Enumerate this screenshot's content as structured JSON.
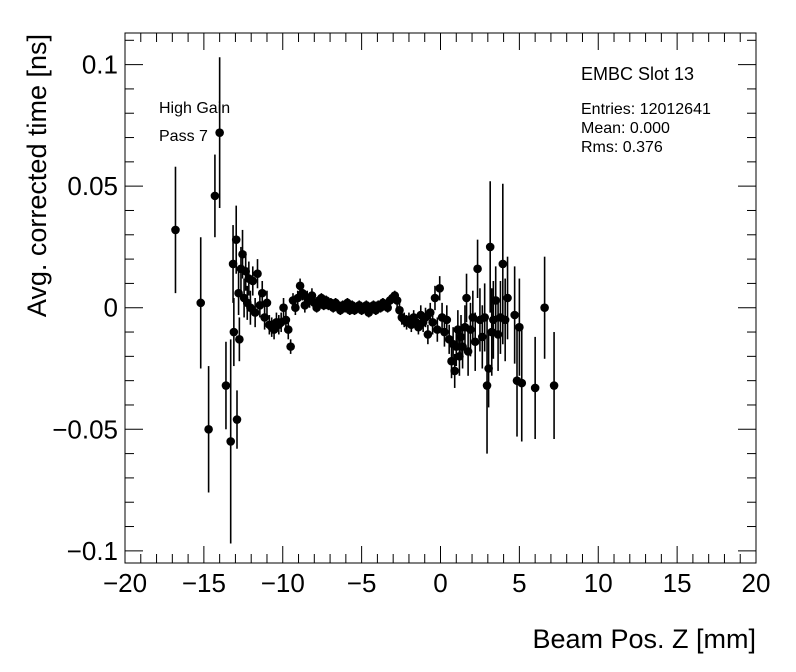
{
  "chart_data": {
    "type": "scatter",
    "xlabel": "Beam Pos. Z [mm]",
    "ylabel": "Avg. corrected time [ns]",
    "xlim": [
      -20,
      20
    ],
    "ylim": [
      -0.105,
      0.113
    ],
    "xticks": [
      -20,
      -15,
      -10,
      -5,
      0,
      5,
      10,
      15,
      20
    ],
    "xtick_labels": [
      "−20",
      "−15",
      "−10",
      "−5",
      "0",
      "5",
      "10",
      "15",
      "20"
    ],
    "yticks": [
      0.1,
      0.05,
      0,
      -0.05,
      -0.1
    ],
    "ytick_labels": [
      "0.1",
      "0.05",
      "0",
      "−0.05",
      "−0.1"
    ],
    "grid": false,
    "marker_color": "#000000",
    "points": [
      {
        "x": -16.8,
        "y": 0.032,
        "err": 0.026
      },
      {
        "x": -15.2,
        "y": 0.002,
        "err": 0.027
      },
      {
        "x": -14.7,
        "y": -0.05,
        "err": 0.026
      },
      {
        "x": -14.3,
        "y": 0.046,
        "err": 0.017
      },
      {
        "x": -14.0,
        "y": 0.072,
        "err": 0.031
      },
      {
        "x": -13.6,
        "y": -0.032,
        "err": 0.018
      },
      {
        "x": -13.3,
        "y": -0.055,
        "err": 0.042
      },
      {
        "x": -13.15,
        "y": 0.018,
        "err": 0.016
      },
      {
        "x": -13.1,
        "y": -0.01,
        "err": 0.014
      },
      {
        "x": -12.95,
        "y": 0.028,
        "err": 0.014
      },
      {
        "x": -12.9,
        "y": -0.046,
        "err": 0.012
      },
      {
        "x": -12.8,
        "y": 0.006,
        "err": 0.009
      },
      {
        "x": -12.75,
        "y": -0.013,
        "err": 0.009
      },
      {
        "x": -12.65,
        "y": 0.016,
        "err": 0.009
      },
      {
        "x": -12.55,
        "y": 0.022,
        "err": 0.01
      },
      {
        "x": -12.45,
        "y": 0.004,
        "err": 0.008
      },
      {
        "x": -12.35,
        "y": 0.015,
        "err": 0.008
      },
      {
        "x": -12.25,
        "y": 0.002,
        "err": 0.007
      },
      {
        "x": -12.15,
        "y": 0.012,
        "err": 0.007
      },
      {
        "x": -12.05,
        "y": 0.0,
        "err": 0.007
      },
      {
        "x": -11.9,
        "y": 0.011,
        "err": 0.006
      },
      {
        "x": -11.75,
        "y": -0.002,
        "err": 0.006
      },
      {
        "x": -11.6,
        "y": 0.014,
        "err": 0.006
      },
      {
        "x": -11.45,
        "y": 0.001,
        "err": 0.005
      },
      {
        "x": -11.3,
        "y": 0.006,
        "err": 0.005
      },
      {
        "x": -11.15,
        "y": -0.004,
        "err": 0.005
      },
      {
        "x": -11.0,
        "y": 0.002,
        "err": 0.005
      },
      {
        "x": -10.85,
        "y": -0.007,
        "err": 0.004
      },
      {
        "x": -10.7,
        "y": -0.008,
        "err": 0.004
      },
      {
        "x": -10.55,
        "y": -0.009,
        "err": 0.004
      },
      {
        "x": -10.4,
        "y": -0.006,
        "err": 0.004
      },
      {
        "x": -10.25,
        "y": -0.007,
        "err": 0.004
      },
      {
        "x": -10.1,
        "y": -0.006,
        "err": 0.004
      },
      {
        "x": -9.95,
        "y": 0.0,
        "err": 0.004
      },
      {
        "x": -9.8,
        "y": -0.005,
        "err": 0.004
      },
      {
        "x": -9.65,
        "y": -0.009,
        "err": 0.004
      },
      {
        "x": -9.5,
        "y": -0.016,
        "err": 0.003
      },
      {
        "x": -9.35,
        "y": 0.003,
        "err": 0.003
      },
      {
        "x": -9.2,
        "y": 0.0,
        "err": 0.003
      },
      {
        "x": -9.05,
        "y": 0.004,
        "err": 0.003
      },
      {
        "x": -8.9,
        "y": 0.009,
        "err": 0.003
      },
      {
        "x": -8.75,
        "y": 0.006,
        "err": 0.003
      },
      {
        "x": -8.6,
        "y": 0.001,
        "err": 0.003
      },
      {
        "x": -8.45,
        "y": 0.004,
        "err": 0.003
      },
      {
        "x": -8.3,
        "y": 0.003,
        "err": 0.003
      },
      {
        "x": -8.15,
        "y": 0.005,
        "err": 0.003
      },
      {
        "x": -8.0,
        "y": 0.002,
        "err": 0.003
      },
      {
        "x": -7.85,
        "y": 0.0,
        "err": 0.002
      },
      {
        "x": -7.7,
        "y": 0.003,
        "err": 0.002
      },
      {
        "x": -7.55,
        "y": 0.004,
        "err": 0.002
      },
      {
        "x": -7.4,
        "y": 0.001,
        "err": 0.002
      },
      {
        "x": -7.25,
        "y": 0.003,
        "err": 0.002
      },
      {
        "x": -7.1,
        "y": 0.001,
        "err": 0.002
      },
      {
        "x": -6.95,
        "y": 0.002,
        "err": 0.002
      },
      {
        "x": -6.8,
        "y": 0.0,
        "err": 0.002
      },
      {
        "x": -6.65,
        "y": 0.002,
        "err": 0.002
      },
      {
        "x": -6.5,
        "y": 0.001,
        "err": 0.002
      },
      {
        "x": -6.35,
        "y": -0.001,
        "err": 0.002
      },
      {
        "x": -6.2,
        "y": 0.001,
        "err": 0.002
      },
      {
        "x": -6.05,
        "y": 0.0,
        "err": 0.002
      },
      {
        "x": -5.9,
        "y": 0.002,
        "err": 0.002
      },
      {
        "x": -5.75,
        "y": -0.001,
        "err": 0.002
      },
      {
        "x": -5.6,
        "y": 0.001,
        "err": 0.002
      },
      {
        "x": -5.45,
        "y": -0.001,
        "err": 0.002
      },
      {
        "x": -5.3,
        "y": 0.0,
        "err": 0.002
      },
      {
        "x": -5.15,
        "y": 0.001,
        "err": 0.002
      },
      {
        "x": -5.0,
        "y": -0.001,
        "err": 0.002
      },
      {
        "x": -4.85,
        "y": 0.0,
        "err": 0.002
      },
      {
        "x": -4.7,
        "y": 0.001,
        "err": 0.002
      },
      {
        "x": -4.55,
        "y": -0.002,
        "err": 0.002
      },
      {
        "x": -4.4,
        "y": 0.0,
        "err": 0.002
      },
      {
        "x": -4.25,
        "y": 0.001,
        "err": 0.002
      },
      {
        "x": -4.1,
        "y": -0.001,
        "err": 0.002
      },
      {
        "x": -3.95,
        "y": 0.001,
        "err": 0.002
      },
      {
        "x": -3.8,
        "y": 0.0,
        "err": 0.002
      },
      {
        "x": -3.65,
        "y": 0.002,
        "err": 0.002
      },
      {
        "x": -3.5,
        "y": 0.001,
        "err": 0.002
      },
      {
        "x": -3.35,
        "y": 0.0,
        "err": 0.002
      },
      {
        "x": -3.2,
        "y": 0.003,
        "err": 0.002
      },
      {
        "x": -3.05,
        "y": 0.004,
        "err": 0.002
      },
      {
        "x": -2.9,
        "y": 0.005,
        "err": 0.002
      },
      {
        "x": -2.75,
        "y": 0.003,
        "err": 0.003
      },
      {
        "x": -2.6,
        "y": -0.001,
        "err": 0.003
      },
      {
        "x": -2.45,
        "y": -0.004,
        "err": 0.003
      },
      {
        "x": -2.3,
        "y": -0.005,
        "err": 0.003
      },
      {
        "x": -2.15,
        "y": -0.006,
        "err": 0.003
      },
      {
        "x": -2.0,
        "y": -0.005,
        "err": 0.003
      },
      {
        "x": -1.85,
        "y": -0.007,
        "err": 0.003
      },
      {
        "x": -1.7,
        "y": -0.004,
        "err": 0.003
      },
      {
        "x": -1.55,
        "y": -0.006,
        "err": 0.003
      },
      {
        "x": -1.4,
        "y": -0.008,
        "err": 0.003
      },
      {
        "x": -1.25,
        "y": -0.003,
        "err": 0.004
      },
      {
        "x": -1.1,
        "y": -0.006,
        "err": 0.004
      },
      {
        "x": -0.95,
        "y": -0.004,
        "err": 0.004
      },
      {
        "x": -0.8,
        "y": -0.011,
        "err": 0.004
      },
      {
        "x": -0.65,
        "y": -0.002,
        "err": 0.004
      },
      {
        "x": -0.5,
        "y": -0.006,
        "err": 0.005
      },
      {
        "x": -0.35,
        "y": 0.004,
        "err": 0.005
      },
      {
        "x": -0.2,
        "y": -0.009,
        "err": 0.005
      },
      {
        "x": -0.05,
        "y": 0.008,
        "err": 0.005
      },
      {
        "x": 0.1,
        "y": -0.004,
        "err": 0.006
      },
      {
        "x": 0.25,
        "y": -0.01,
        "err": 0.006
      },
      {
        "x": 0.4,
        "y": -0.005,
        "err": 0.006
      },
      {
        "x": 0.55,
        "y": -0.013,
        "err": 0.006
      },
      {
        "x": 0.7,
        "y": -0.022,
        "err": 0.007
      },
      {
        "x": 0.8,
        "y": -0.015,
        "err": 0.007
      },
      {
        "x": 0.9,
        "y": -0.026,
        "err": 0.007
      },
      {
        "x": 1.0,
        "y": -0.016,
        "err": 0.008
      },
      {
        "x": 1.1,
        "y": -0.009,
        "err": 0.008
      },
      {
        "x": 1.2,
        "y": -0.02,
        "err": 0.008
      },
      {
        "x": 1.3,
        "y": -0.012,
        "err": 0.009
      },
      {
        "x": 1.4,
        "y": -0.016,
        "err": 0.009
      },
      {
        "x": 1.55,
        "y": -0.008,
        "err": 0.009
      },
      {
        "x": 1.65,
        "y": 0.004,
        "err": 0.01
      },
      {
        "x": 1.75,
        "y": -0.018,
        "err": 0.01
      },
      {
        "x": 1.9,
        "y": -0.009,
        "err": 0.011
      },
      {
        "x": 2.05,
        "y": -0.004,
        "err": 0.011
      },
      {
        "x": 2.2,
        "y": -0.014,
        "err": 0.012
      },
      {
        "x": 2.35,
        "y": 0.016,
        "err": 0.012
      },
      {
        "x": 2.5,
        "y": -0.005,
        "err": 0.013
      },
      {
        "x": 2.65,
        "y": -0.012,
        "err": 0.013
      },
      {
        "x": 2.8,
        "y": -0.004,
        "err": 0.014
      },
      {
        "x": 2.95,
        "y": -0.032,
        "err": 0.028
      },
      {
        "x": 3.05,
        "y": -0.025,
        "err": 0.016
      },
      {
        "x": 3.15,
        "y": 0.025,
        "err": 0.027
      },
      {
        "x": 3.25,
        "y": -0.01,
        "err": 0.018
      },
      {
        "x": 3.35,
        "y": -0.005,
        "err": 0.016
      },
      {
        "x": 3.5,
        "y": 0.003,
        "err": 0.014
      },
      {
        "x": 3.65,
        "y": -0.011,
        "err": 0.015
      },
      {
        "x": 3.8,
        "y": -0.004,
        "err": 0.015
      },
      {
        "x": 3.95,
        "y": 0.018,
        "err": 0.033
      },
      {
        "x": 4.1,
        "y": -0.005,
        "err": 0.017
      },
      {
        "x": 4.25,
        "y": 0.004,
        "err": 0.017
      },
      {
        "x": 4.7,
        "y": -0.003,
        "err": 0.02
      },
      {
        "x": 4.85,
        "y": -0.03,
        "err": 0.023
      },
      {
        "x": 5.0,
        "y": -0.008,
        "err": 0.02
      },
      {
        "x": 5.15,
        "y": -0.031,
        "err": 0.024
      },
      {
        "x": 6.0,
        "y": -0.033,
        "err": 0.021
      },
      {
        "x": 6.6,
        "y": 0.0,
        "err": 0.021
      },
      {
        "x": 7.2,
        "y": -0.032,
        "err": 0.022
      }
    ]
  },
  "legend_box": {
    "title": "EMBC Slot 13",
    "entries": "Entries: 12012641",
    "mean": "Mean: 0.000",
    "rms": "Rms: 0.376"
  },
  "annotations": {
    "gain": "High Gain",
    "pass": "Pass 7"
  }
}
